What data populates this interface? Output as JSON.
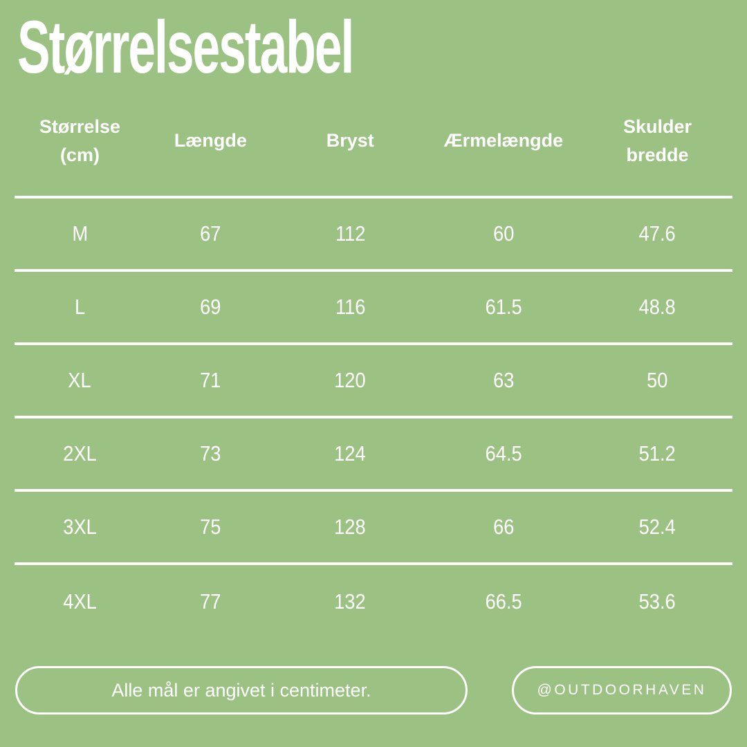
{
  "page": {
    "background_color": "#9bc282",
    "text_color": "#ffffff",
    "line_color": "#ffffff"
  },
  "chart_data": {
    "type": "table",
    "title": "Størrelsestabel",
    "columns": [
      {
        "line1": "Størrelse",
        "line2": "(cm)"
      },
      {
        "line1": "Længde",
        "line2": ""
      },
      {
        "line1": "Bryst",
        "line2": ""
      },
      {
        "line1": "Ærmelængde",
        "line2": ""
      },
      {
        "line1": "Skulder",
        "line2": "bredde"
      }
    ],
    "rows": [
      [
        "M",
        "67",
        "112",
        "60",
        "47.6"
      ],
      [
        "L",
        "69",
        "116",
        "61.5",
        "48.8"
      ],
      [
        "XL",
        "71",
        "120",
        "63",
        "50"
      ],
      [
        "2XL",
        "73",
        "124",
        "64.5",
        "51.2"
      ],
      [
        "3XL",
        "75",
        "128",
        "66",
        "52.4"
      ],
      [
        "4XL",
        "77",
        "132",
        "66.5",
        "53.6"
      ]
    ]
  },
  "footer": {
    "note": "Alle mål er angivet i centimeter.",
    "handle": "@OUTDOORHAVEN"
  }
}
